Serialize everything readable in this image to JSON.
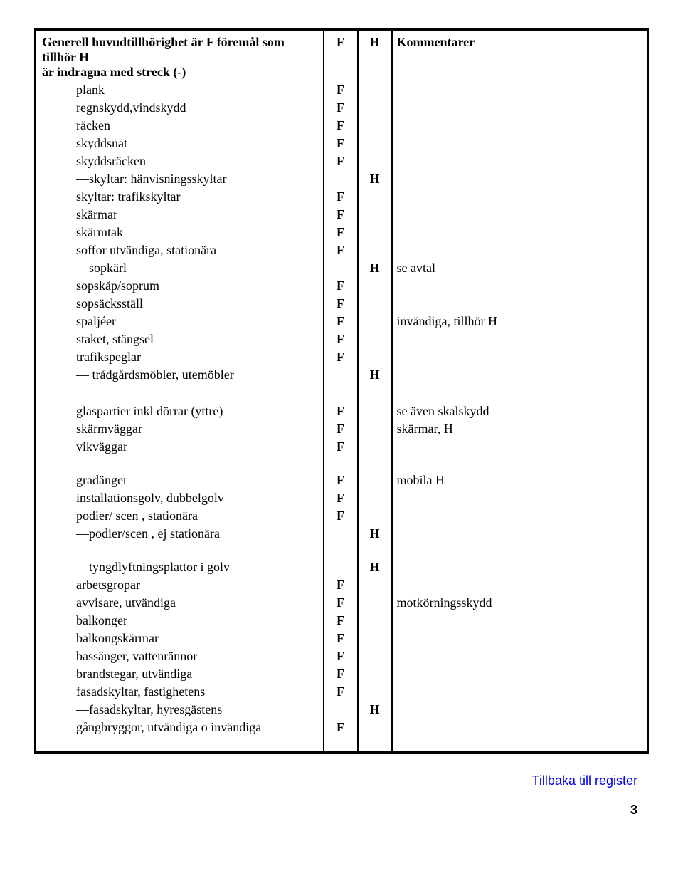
{
  "header": {
    "desc_line1": "Generell huvudtillhörighet är F föremål som tillhör H",
    "desc_line2": "är indragna med streck (-)",
    "col_f": "F",
    "col_h": "H",
    "col_comment": "Kommentarer"
  },
  "rows_a": [
    {
      "label": "plank",
      "f": "F",
      "h": "",
      "c": "",
      "indent": 1
    },
    {
      "label": "regnskydd,vindskydd",
      "f": "F",
      "h": "",
      "c": "",
      "indent": 1
    },
    {
      "label": "räcken",
      "f": "F",
      "h": "",
      "c": "",
      "indent": 1
    },
    {
      "label": "skyddsnät",
      "f": "F",
      "h": "",
      "c": "",
      "indent": 1
    },
    {
      "label": "skyddsräcken",
      "f": "F",
      "h": "",
      "c": "",
      "indent": 1
    },
    {
      "label": "—skyltar: hänvisningsskyltar",
      "f": "",
      "h": "H",
      "c": "",
      "indent": 1
    },
    {
      "label": "skyltar: trafikskyltar",
      "f": "F",
      "h": "",
      "c": "",
      "indent": 1
    },
    {
      "label": "skärmar",
      "f": "F",
      "h": "",
      "c": "",
      "indent": 1
    },
    {
      "label": "skärmtak",
      "f": "F",
      "h": "",
      "c": "",
      "indent": 1
    },
    {
      "label": "soffor utvändiga, stationära",
      "f": "F",
      "h": "",
      "c": "",
      "indent": 1
    },
    {
      "label": "—sopkärl",
      "f": "",
      "h": "H",
      "c": "se avtal",
      "indent": 1
    },
    {
      "label": "sopskåp/soprum",
      "f": "F",
      "h": "",
      "c": "",
      "indent": 1
    },
    {
      "label": "sopsäcksställ",
      "f": "F",
      "h": "",
      "c": "",
      "indent": 1
    },
    {
      "label": "spaljéer",
      "f": "F",
      "h": "",
      "c": "invändiga, tillhör H",
      "indent": 1
    },
    {
      "label": "staket, stängsel",
      "f": "F",
      "h": "",
      "c": "",
      "indent": 1
    },
    {
      "label": "trafikspeglar",
      "f": "F",
      "h": "",
      "c": "",
      "indent": 1
    },
    {
      "label": "— trådgårdsmöbler, utemöbler",
      "f": "",
      "h": "H",
      "c": "",
      "indent": 1
    }
  ],
  "rows_b": [
    {
      "label": "glaspartier inkl dörrar (yttre)",
      "f": "F",
      "h": "",
      "c": "se även skalskydd",
      "indent": 1
    },
    {
      "label": "skärmväggar",
      "f": "F",
      "h": "",
      "c": "skärmar, H",
      "indent": 1
    },
    {
      "label": "vikväggar",
      "f": "F",
      "h": "",
      "c": "",
      "indent": 1
    }
  ],
  "rows_c": [
    {
      "label": "gradänger",
      "f": "F",
      "h": "",
      "c": " mobila H",
      "indent": 1
    },
    {
      "label": "installationsgolv, dubbelgolv",
      "f": "F",
      "h": "",
      "c": "",
      "indent": 1
    },
    {
      "label": "podier/ scen , stationära",
      "f": "F",
      "h": "",
      "c": "",
      "indent": 1
    },
    {
      "label": "—podier/scen , ej stationära",
      "f": "",
      "h": "H",
      "c": "",
      "indent": 1
    }
  ],
  "rows_d": [
    {
      "label": "—tyngdlyftningsplattor i golv",
      "f": "",
      "h": "H",
      "c": "",
      "indent": 1
    },
    {
      "label": "arbetsgropar",
      "f": "F",
      "h": "",
      "c": "",
      "indent": 1
    },
    {
      "label": "avvisare, utvändiga",
      "f": "F",
      "h": "",
      "c": "motkörningsskydd",
      "indent": 1
    },
    {
      "label": "balkonger",
      "f": "F",
      "h": "",
      "c": "",
      "indent": 1
    },
    {
      "label": "balkongskärmar",
      "f": "F",
      "h": "",
      "c": "",
      "indent": 1
    },
    {
      "label": "bassänger, vattenrännor",
      "f": "F",
      "h": "",
      "c": "",
      "indent": 1
    },
    {
      "label": "brandstegar, utvändiga",
      "f": "F",
      "h": "",
      "c": "",
      "indent": 1
    },
    {
      "label": "fasadskyltar, fastighetens",
      "f": "F",
      "h": "",
      "c": "",
      "indent": 1
    },
    {
      "label": "—fasadskyltar, hyresgästens",
      "f": "",
      "h": "H",
      "c": "",
      "indent": 1
    },
    {
      "label": "gångbryggor, utvändiga o invändiga",
      "f": "F",
      "h": "",
      "c": "",
      "indent": 1
    }
  ],
  "footer": {
    "back_link": "Tillbaka till register",
    "page_number": "3"
  },
  "style": {
    "border_color": "#000000",
    "link_color": "#0000ee",
    "font_size_pt": 14
  }
}
